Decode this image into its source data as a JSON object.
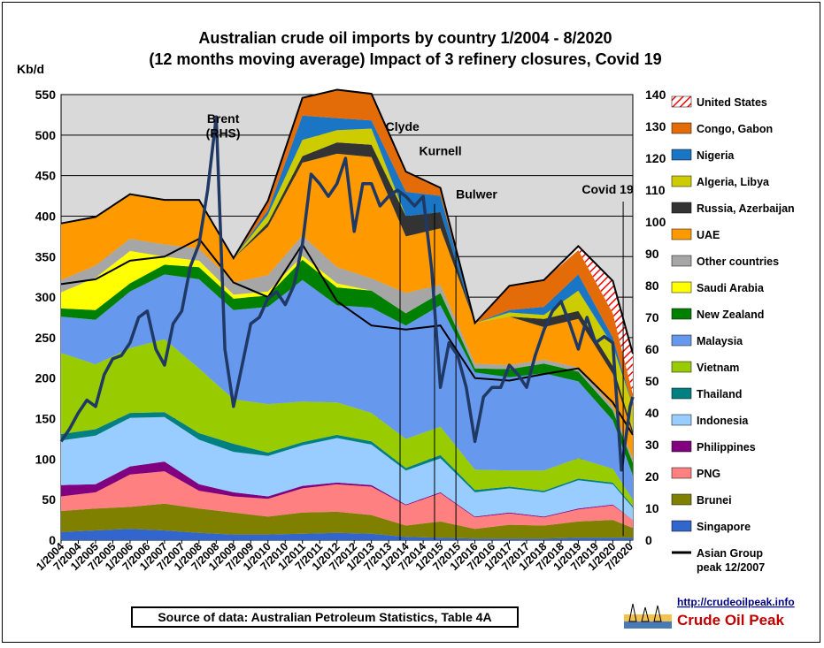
{
  "chart_data": {
    "type": "area",
    "title_line1": "Australian crude oil imports  by country 1/2004 - 8/2020",
    "title_line2": "(12 months moving average) Impact of 3 refinery closures, Covid 19",
    "ylabel": "Kb/d",
    "ylim": [
      0,
      550
    ],
    "y_ticks": [
      "0",
      "50",
      "100",
      "150",
      "200",
      "250",
      "300",
      "350",
      "400",
      "450",
      "500",
      "550"
    ],
    "y2lim": [
      0,
      140
    ],
    "y2_ticks": [
      "0",
      "10",
      "20",
      "30",
      "40",
      "50",
      "60",
      "70",
      "80",
      "90",
      "100",
      "110",
      "120",
      "130",
      "140"
    ],
    "x_ticks": [
      "1/2004",
      "7/2004",
      "1/2005",
      "7/2005",
      "1/2006",
      "7/2006",
      "1/2007",
      "7/2007",
      "1/2008",
      "7/2008",
      "1/2009",
      "7/2009",
      "1/2010",
      "7/2010",
      "1/2011",
      "7/2011",
      "1/2012",
      "7/2012",
      "1/2013",
      "7/2013",
      "1/2014",
      "7/2014",
      "1/2015",
      "7/2015",
      "1/2016",
      "7/2016",
      "1/2017",
      "7/2017",
      "1/2018",
      "7/2018",
      "1/2019",
      "7/2019",
      "1/2020",
      "7/2020"
    ],
    "x_years": [
      2004,
      2005,
      2006,
      2007,
      2008,
      2009,
      2010,
      2011,
      2012,
      2013,
      2014,
      2015,
      2016,
      2017,
      2018,
      2019,
      2020,
      2020.58
    ],
    "series": [
      {
        "name": "Singapore",
        "color": "#3366cc",
        "values": [
          10,
          12,
          14,
          12,
          9,
          7,
          7,
          8,
          9,
          8,
          4,
          3,
          2,
          2,
          2,
          3,
          3,
          3
        ]
      },
      {
        "name": "Brunei",
        "color": "#808000",
        "values": [
          26,
          27,
          27,
          33,
          30,
          27,
          22,
          26,
          26,
          23,
          14,
          20,
          12,
          17,
          16,
          20,
          22,
          12
        ]
      },
      {
        "name": "PNG",
        "color": "#ff8080",
        "values": [
          18,
          20,
          40,
          40,
          22,
          20,
          22,
          30,
          34,
          35,
          25,
          35,
          14,
          14,
          10,
          15,
          18,
          10
        ]
      },
      {
        "name": "Philippines",
        "color": "#800080",
        "values": [
          14,
          10,
          10,
          12,
          8,
          5,
          3,
          3,
          2,
          2,
          1,
          1,
          1,
          1,
          1,
          1,
          1,
          0
        ]
      },
      {
        "name": "Indonesia",
        "color": "#99ccff",
        "values": [
          55,
          60,
          60,
          55,
          55,
          50,
          50,
          50,
          55,
          50,
          42,
          42,
          30,
          30,
          30,
          35,
          25,
          15
        ]
      },
      {
        "name": "Thailand",
        "color": "#008080",
        "values": [
          8,
          8,
          6,
          6,
          8,
          10,
          4,
          4,
          4,
          4,
          3,
          4,
          3,
          2,
          2,
          2,
          2,
          2
        ]
      },
      {
        "name": "Vietnam",
        "color": "#99cc00",
        "values": [
          100,
          80,
          80,
          90,
          80,
          55,
          60,
          50,
          40,
          35,
          36,
          35,
          25,
          20,
          25,
          25,
          17,
          8
        ]
      },
      {
        "name": "Malaysia",
        "color": "#6699ee",
        "values": [
          45,
          55,
          70,
          80,
          110,
          110,
          120,
          150,
          120,
          130,
          140,
          150,
          120,
          115,
          120,
          95,
          60,
          30
        ]
      },
      {
        "name": "New Zealand",
        "color": "#008000",
        "values": [
          10,
          12,
          10,
          12,
          15,
          14,
          14,
          25,
          22,
          21,
          15,
          15,
          5,
          10,
          12,
          12,
          12,
          15
        ]
      },
      {
        "name": "Saudi Arabia",
        "color": "#ffff00",
        "values": [
          20,
          40,
          40,
          10,
          8,
          5,
          5,
          5,
          5,
          0,
          0,
          0,
          0,
          0,
          0,
          0,
          0,
          0
        ]
      },
      {
        "name": "Other countries",
        "color": "#a6a6a6",
        "values": [
          15,
          15,
          15,
          15,
          15,
          15,
          20,
          25,
          20,
          15,
          25,
          10,
          6,
          5,
          5,
          5,
          5,
          5
        ]
      },
      {
        "name": "UAE",
        "color": "#ff9900",
        "values": [
          70,
          60,
          55,
          55,
          60,
          30,
          60,
          90,
          140,
          150,
          70,
          70,
          50,
          60,
          40,
          60,
          40,
          30
        ]
      },
      {
        "name": "Russia, Azerbaijan",
        "color": "#333333",
        "values": [
          0,
          0,
          0,
          0,
          0,
          0,
          5,
          8,
          14,
          15,
          25,
          20,
          0,
          0,
          10,
          10,
          10,
          5
        ]
      },
      {
        "name": "Algeria, Libya",
        "color": "#cccc00",
        "values": [
          0,
          0,
          0,
          0,
          0,
          0,
          10,
          20,
          15,
          20,
          0,
          0,
          0,
          5,
          5,
          25,
          25,
          30
        ]
      },
      {
        "name": "Nigeria",
        "color": "#1a75c4",
        "values": [
          0,
          0,
          0,
          0,
          0,
          0,
          5,
          30,
          15,
          10,
          30,
          20,
          0,
          3,
          10,
          20,
          10,
          0
        ]
      },
      {
        "name": "Congo, Gabon",
        "color": "#e36c09",
        "values": [
          0,
          0,
          0,
          0,
          0,
          0,
          12,
          22,
          35,
          33,
          25,
          10,
          0,
          30,
          33,
          30,
          30,
          15
        ]
      },
      {
        "name": "United States",
        "color": "#ff0000",
        "hatched": true,
        "values": [
          0,
          0,
          0,
          0,
          0,
          0,
          0,
          0,
          0,
          0,
          0,
          0,
          0,
          0,
          0,
          5,
          40,
          50
        ]
      }
    ],
    "asian_group_line": {
      "name": "Asian Group peak 12/2007",
      "color": "#000000",
      "values": [
        316,
        322,
        345,
        350,
        372,
        318,
        300,
        365,
        295,
        265,
        260,
        265,
        200,
        197,
        205,
        212,
        170,
        130
      ]
    },
    "brent_line": {
      "name": "Brent (RHS)",
      "color": "#1f3864",
      "x_months": [
        2004.0,
        2004.25,
        2004.5,
        2004.75,
        2005.0,
        2005.25,
        2005.5,
        2005.75,
        2006.0,
        2006.25,
        2006.5,
        2006.75,
        2007.0,
        2007.25,
        2007.5,
        2007.75,
        2008.0,
        2008.25,
        2008.5,
        2008.75,
        2009.0,
        2009.25,
        2009.5,
        2009.75,
        2010.0,
        2010.25,
        2010.5,
        2010.75,
        2011.0,
        2011.25,
        2011.5,
        2011.75,
        2012.0,
        2012.25,
        2012.5,
        2012.75,
        2013.0,
        2013.25,
        2013.5,
        2013.75,
        2014.0,
        2014.25,
        2014.5,
        2014.75,
        2015.0,
        2015.25,
        2015.5,
        2015.75,
        2016.0,
        2016.25,
        2016.5,
        2016.75,
        2017.0,
        2017.25,
        2017.5,
        2017.75,
        2018.0,
        2018.25,
        2018.5,
        2018.75,
        2019.0,
        2019.25,
        2019.5,
        2019.75,
        2020.0,
        2020.25,
        2020.5,
        2020.58
      ],
      "values": [
        31,
        35,
        40,
        44,
        42,
        52,
        57,
        58,
        62,
        70,
        72,
        60,
        55,
        68,
        72,
        86,
        93,
        110,
        133,
        60,
        42,
        55,
        68,
        70,
        76,
        78,
        74,
        80,
        93,
        115,
        112,
        108,
        112,
        120,
        97,
        112,
        112,
        105,
        108,
        110,
        108,
        105,
        108,
        85,
        48,
        62,
        58,
        48,
        31,
        45,
        48,
        48,
        55,
        52,
        48,
        58,
        66,
        72,
        75,
        68,
        60,
        70,
        62,
        64,
        62,
        22,
        42,
        45
      ]
    },
    "annotations": [
      {
        "text": "Brent",
        "x": 2008.7,
        "y": 515
      },
      {
        "text": "(RHS)",
        "x": 2008.7,
        "y": 497
      },
      {
        "text": "Clyde",
        "x": 2013.9,
        "y": 505
      },
      {
        "text": "Kurnell",
        "x": 2015.0,
        "y": 475
      },
      {
        "text": "Bulwer",
        "x": 2016.05,
        "y": 422
      },
      {
        "text": "Covid 19",
        "x": 2019.85,
        "y": 428
      }
    ],
    "closure_lines": [
      2013.83,
      2014.83,
      2015.45
    ],
    "legend_position": "right",
    "grid": "horizontal"
  },
  "legend_items": [
    "United States",
    "Congo, Gabon",
    "Nigeria",
    "Algeria, Libya",
    "Russia, Azerbaijan",
    "UAE",
    "Other countries",
    "Saudi Arabia",
    "New Zealand",
    "Malaysia",
    "Vietnam",
    "Thailand",
    "Indonesia",
    "Philippines",
    "PNG",
    "Brunei",
    "Singapore"
  ],
  "legend_line_line1": "Asian Group",
  "legend_line_line2": "peak 12/2007",
  "source_text": "Source of data: Australian Petroleum Statistics, Table 4A",
  "logo": {
    "url": "http://crudeoilpeak.info",
    "name": "Crude Oil Peak"
  }
}
